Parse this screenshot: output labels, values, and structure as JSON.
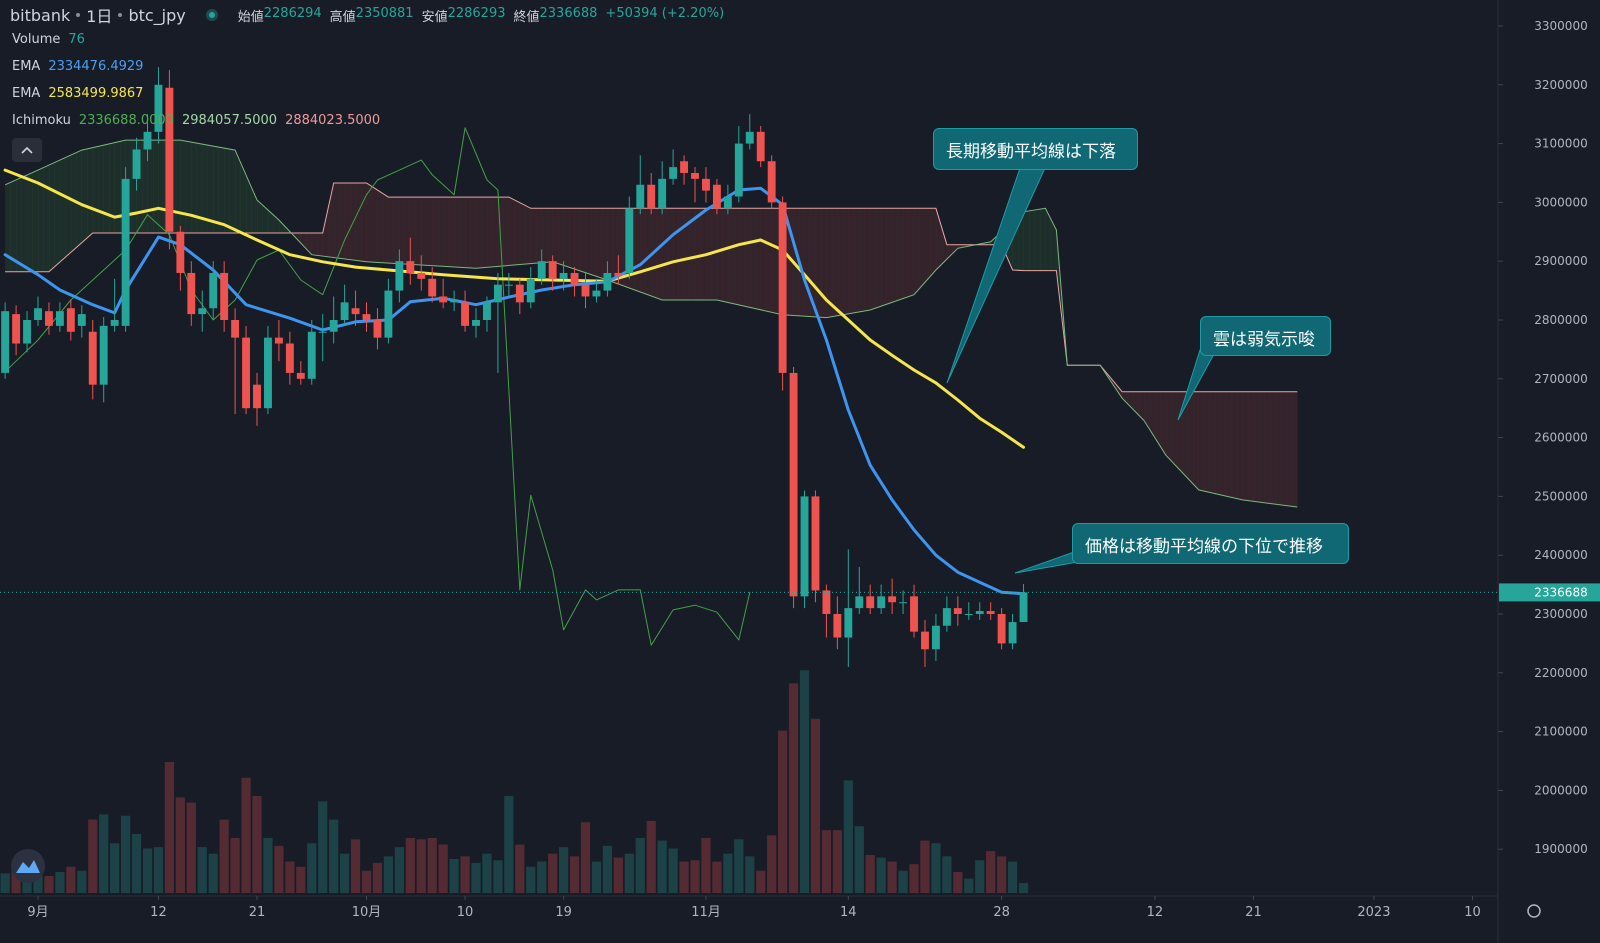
{
  "header": {
    "symbol_parts": [
      "bitbank",
      "1日",
      "btc_jpy"
    ],
    "ohlc": [
      {
        "label": "始値",
        "value": 2286294
      },
      {
        "label": "高値",
        "value": 2350881
      },
      {
        "label": "安値",
        "value": 2286293
      },
      {
        "label": "終値",
        "value": 2336688
      }
    ],
    "change": "+50394 (+2.20%)"
  },
  "legend": [
    {
      "name": "Volume",
      "values": [
        76
      ],
      "colors": [
        "#26a69a"
      ]
    },
    {
      "name": "EMA",
      "values": [
        "2334476.4929"
      ],
      "colors": [
        "#4a9ff5"
      ]
    },
    {
      "name": "EMA",
      "values": [
        "2583499.9867"
      ],
      "colors": [
        "#f5e64a"
      ]
    },
    {
      "name": "Ichimoku",
      "values": [
        "2336688.0000",
        "2984057.5000",
        "2884023.5000"
      ],
      "colors": [
        "#4caf50",
        "#a5d6a7",
        "#ef9a9a"
      ]
    }
  ],
  "annotations": [
    "長期移動平均線は下落",
    "雲は弱気示唆",
    "価格は移動平均線の下位で推移"
  ],
  "chart_data": {
    "type": "candlestick",
    "xlim": [
      -3.47,
      133.33
    ],
    "xticks": [
      {
        "value": 0,
        "label": "9月"
      },
      {
        "value": 11,
        "label": "12"
      },
      {
        "value": 20,
        "label": "21"
      },
      {
        "value": 30,
        "label": "10月"
      },
      {
        "value": 39,
        "label": "10"
      },
      {
        "value": 48,
        "label": "19"
      },
      {
        "value": 61,
        "label": "11月"
      },
      {
        "value": 74,
        "label": "14"
      },
      {
        "value": 88,
        "label": "28"
      },
      {
        "value": 102,
        "label": "12"
      },
      {
        "value": 111,
        "label": "21"
      },
      {
        "value": 122,
        "label": "2023"
      },
      {
        "value": 131,
        "label": "10"
      }
    ],
    "ylim": [
      1825500,
      3344200
    ],
    "yticks": [
      1900000,
      2000000,
      2100000,
      2200000,
      2300000,
      2400000,
      2500000,
      2600000,
      2700000,
      2800000,
      2900000,
      3000000,
      3100000,
      3200000,
      3300000
    ],
    "grid": false,
    "up_color": "#26a69a",
    "down_color": "#ef5350",
    "x": [
      -3,
      -2,
      -1,
      0,
      1,
      2,
      3,
      4,
      5,
      6,
      7,
      8,
      9,
      10,
      11,
      12,
      13,
      14,
      15,
      16,
      17,
      18,
      19,
      20,
      21,
      22,
      23,
      24,
      25,
      26,
      27,
      28,
      29,
      30,
      31,
      32,
      33,
      34,
      35,
      36,
      37,
      38,
      39,
      40,
      41,
      42,
      43,
      44,
      45,
      46,
      47,
      48,
      49,
      50,
      51,
      52,
      53,
      54,
      55,
      56,
      57,
      58,
      59,
      60,
      61,
      62,
      63,
      64,
      65,
      66,
      67,
      68,
      69,
      70,
      71,
      72,
      73,
      74,
      75,
      76,
      77,
      78,
      79,
      80,
      81,
      82,
      83,
      84,
      85,
      86,
      87,
      88,
      89,
      90
    ],
    "open": [
      2710000,
      2810000,
      2760000,
      2800000,
      2815000,
      2790000,
      2820000,
      2790000,
      2780000,
      2690000,
      2790000,
      2790000,
      3040000,
      3090000,
      3120000,
      3195000,
      2950000,
      2880000,
      2810000,
      2820000,
      2880000,
      2800000,
      2770000,
      2690000,
      2650000,
      2770000,
      2760000,
      2710000,
      2700000,
      2780000,
      2780000,
      2800000,
      2820000,
      2810000,
      2800000,
      2770000,
      2850000,
      2900000,
      2880000,
      2870000,
      2840000,
      2830000,
      2830000,
      2790000,
      2800000,
      2830000,
      2860000,
      2860000,
      2830000,
      2870000,
      2900000,
      2870000,
      2880000,
      2860000,
      2840000,
      2850000,
      2880000,
      2880000,
      2990000,
      3030000,
      2990000,
      3040000,
      3070000,
      3050000,
      3040000,
      3030000,
      2990000,
      3010000,
      3100000,
      3120000,
      3070000,
      3000000,
      2710000,
      2330000,
      2500000,
      2340000,
      2300000,
      2260000,
      2310000,
      2330000,
      2310000,
      2330000,
      2320000,
      2330000,
      2270000,
      2240000,
      2280000,
      2310000,
      2300000,
      2300000,
      2305000,
      2300000,
      2250000,
      2286294
    ],
    "high": [
      2830000,
      2825000,
      2815000,
      2840000,
      2830000,
      2830000,
      2835000,
      2825000,
      2800000,
      2805000,
      2870000,
      3060000,
      3110000,
      3150000,
      3230000,
      3225000,
      2960000,
      2900000,
      2850000,
      2900000,
      2900000,
      2820000,
      2790000,
      2710000,
      2790000,
      2800000,
      2780000,
      2730000,
      2800000,
      2810000,
      2840000,
      2860000,
      2850000,
      2830000,
      2820000,
      2870000,
      2920000,
      2940000,
      2910000,
      2890000,
      2870000,
      2850000,
      2850000,
      2820000,
      2840000,
      2880000,
      2880000,
      2870000,
      2890000,
      2920000,
      2910000,
      2900000,
      2890000,
      2880000,
      2870000,
      2900000,
      2910000,
      3010000,
      3080000,
      3050000,
      3070000,
      3090000,
      3080000,
      3060000,
      3060000,
      3040000,
      3030000,
      3130000,
      3150000,
      3130000,
      3080000,
      3010000,
      2720000,
      2510000,
      2510000,
      2350000,
      2330000,
      2410000,
      2380000,
      2350000,
      2350000,
      2360000,
      2340000,
      2350000,
      2290000,
      2300000,
      2330000,
      2330000,
      2320000,
      2320000,
      2320000,
      2310000,
      2300000,
      2350881
    ],
    "low": [
      2700000,
      2740000,
      2745000,
      2790000,
      2775000,
      2780000,
      2765000,
      2770000,
      2665000,
      2660000,
      2780000,
      2780000,
      3020000,
      3070000,
      3100000,
      2920000,
      2850000,
      2790000,
      2780000,
      2800000,
      2780000,
      2640000,
      2640000,
      2620000,
      2640000,
      2730000,
      2690000,
      2690000,
      2690000,
      2730000,
      2760000,
      2790000,
      2790000,
      2780000,
      2750000,
      2760000,
      2830000,
      2860000,
      2850000,
      2830000,
      2820000,
      2815000,
      2780000,
      2770000,
      2780000,
      2710000,
      2840000,
      2810000,
      2820000,
      2860000,
      2850000,
      2850000,
      2840000,
      2820000,
      2830000,
      2840000,
      2860000,
      2870000,
      2980000,
      2980000,
      2980000,
      3030000,
      3030000,
      3000000,
      3000000,
      2980000,
      2980000,
      3000000,
      3090000,
      3060000,
      2990000,
      2680000,
      2310000,
      2310000,
      2320000,
      2260000,
      2240000,
      2210000,
      2300000,
      2300000,
      2300000,
      2300000,
      2300000,
      2260000,
      2210000,
      2220000,
      2270000,
      2280000,
      2290000,
      2290000,
      2290000,
      2240000,
      2240000,
      2286293
    ],
    "close": [
      2815000,
      2760000,
      2800000,
      2820000,
      2790000,
      2815000,
      2780000,
      2810000,
      2690000,
      2790000,
      2800000,
      3040000,
      3090000,
      3120000,
      3200000,
      2950000,
      2880000,
      2810000,
      2820000,
      2880000,
      2800000,
      2770000,
      2650000,
      2650000,
      2770000,
      2760000,
      2710000,
      2700000,
      2780000,
      2780000,
      2800000,
      2830000,
      2810000,
      2800000,
      2770000,
      2850000,
      2900000,
      2880000,
      2870000,
      2840000,
      2830000,
      2835000,
      2790000,
      2800000,
      2830000,
      2860000,
      2860000,
      2830000,
      2870000,
      2900000,
      2870000,
      2880000,
      2860000,
      2840000,
      2850000,
      2880000,
      2875000,
      2990000,
      3030000,
      2990000,
      3040000,
      3060000,
      3050000,
      3040000,
      3020000,
      2990000,
      3010000,
      3100000,
      3120000,
      3070000,
      3000000,
      2710000,
      2330000,
      2500000,
      2340000,
      2300000,
      2260000,
      2310000,
      2330000,
      2310000,
      2330000,
      2320000,
      2320000,
      2270000,
      2240000,
      2280000,
      2310000,
      2300000,
      2300000,
      2305000,
      2300000,
      2250000,
      2286294,
      2336688
    ],
    "volume": [
      150,
      220,
      180,
      170,
      130,
      160,
      200,
      170,
      560,
      600,
      380,
      590,
      450,
      340,
      350,
      1000,
      730,
      690,
      350,
      300,
      560,
      420,
      880,
      740,
      420,
      360,
      240,
      200,
      380,
      700,
      560,
      300,
      410,
      170,
      230,
      280,
      350,
      420,
      410,
      420,
      370,
      260,
      280,
      230,
      300,
      250,
      740,
      370,
      200,
      240,
      300,
      350,
      280,
      540,
      240,
      360,
      270,
      300,
      420,
      550,
      400,
      340,
      240,
      250,
      420,
      240,
      300,
      410,
      280,
      170,
      440,
      1240,
      1600,
      1700,
      1330,
      480,
      480,
      860,
      510,
      290,
      270,
      240,
      170,
      220,
      400,
      380,
      280,
      160,
      110,
      250,
      320,
      280,
      240,
      76
    ],
    "volume_ylim": [
      0,
      3000
    ],
    "volume_up_color": "rgba(38,166,154,0.28)",
    "volume_down_color": "rgba(239,83,80,0.28)",
    "lines": [
      {
        "color": "#43a047",
        "width": 1,
        "x": [
          -3,
          0,
          3,
          6,
          8,
          10,
          12,
          14,
          16,
          18,
          20,
          22,
          24,
          26,
          28,
          30,
          31,
          33,
          35,
          36,
          38,
          39,
          41,
          42,
          44,
          45,
          47,
          48,
          50,
          51,
          53,
          55,
          56,
          58,
          60,
          62,
          64,
          65
        ],
        "values": [
          2712000,
          2766000,
          2834000,
          2885000,
          2919000,
          2979000,
          2945000,
          2851000,
          2800000,
          2834000,
          2902000,
          2919000,
          2868000,
          2843000,
          2936000,
          3013000,
          3038000,
          3055000,
          3072000,
          3047000,
          3013000,
          3127000,
          3038000,
          3021000,
          2341000,
          2502000,
          2375000,
          2273000,
          2341000,
          2324000,
          2341000,
          2341000,
          2247000,
          2307000,
          2315000,
          2303000,
          2256000,
          2336688
        ]
      },
      {
        "color": "#f5e64a",
        "width": 3,
        "x": [
          -3,
          0,
          4,
          7,
          9,
          11,
          14,
          17,
          20,
          23,
          26,
          29,
          32,
          37,
          42,
          47,
          52,
          55,
          58,
          61,
          64,
          66,
          68,
          70,
          72,
          74,
          76,
          78,
          80,
          82,
          84,
          86,
          88,
          90
        ],
        "values": [
          3055000,
          3033000,
          2996000,
          2975000,
          2982000,
          2990000,
          2978000,
          2962000,
          2936000,
          2911000,
          2899000,
          2890000,
          2885000,
          2877000,
          2870000,
          2868000,
          2866000,
          2882000,
          2899000,
          2911000,
          2928000,
          2936000,
          2919000,
          2877000,
          2834000,
          2800000,
          2766000,
          2740000,
          2715000,
          2693000,
          2664000,
          2633000,
          2609000,
          2583499.9867
        ]
      },
      {
        "color": "#3d95f0",
        "width": 3,
        "x": [
          -3,
          0,
          2,
          5,
          7,
          8,
          11,
          13,
          16,
          19,
          23,
          26,
          29,
          32,
          34,
          37,
          40,
          43,
          46,
          49,
          52,
          55,
          58,
          61,
          64,
          66,
          68,
          70,
          72,
          74,
          76,
          78,
          80,
          82,
          84,
          86,
          88,
          90
        ],
        "values": [
          2911000,
          2877000,
          2851000,
          2826000,
          2812000,
          2851000,
          2941000,
          2928000,
          2885000,
          2826000,
          2803000,
          2783000,
          2797000,
          2800000,
          2831000,
          2837000,
          2826000,
          2839000,
          2851000,
          2860000,
          2865000,
          2894000,
          2945000,
          2987000,
          3021000,
          3024000,
          2996000,
          2868000,
          2766000,
          2647000,
          2553000,
          2494000,
          2443000,
          2400000,
          2371000,
          2354000,
          2337000,
          2334476.4929
        ]
      }
    ],
    "cloud": {
      "a_color": "#7cb87f",
      "b_color": "#e8a6a6",
      "up_fill": "rgba(76,175,80,0.13)",
      "down_fill": "rgba(239,83,80,0.13)",
      "a_x": [
        -3,
        0,
        4,
        8,
        13,
        18,
        20,
        22,
        25,
        30,
        40,
        47,
        52,
        57,
        62,
        68,
        72,
        76,
        80,
        82,
        84,
        87,
        90,
        92,
        93,
        94,
        97,
        99,
        101,
        103,
        106,
        110,
        115
      ],
      "a": [
        3030000,
        3055000,
        3089000,
        3106000,
        3106000,
        3089000,
        3004000,
        2970000,
        2911000,
        2899000,
        2888000,
        2899000,
        2868000,
        2834000,
        2834000,
        2809000,
        2804000,
        2817000,
        2843000,
        2885000,
        2922000,
        2933000,
        2984057.5,
        2990000,
        2953000,
        2723000,
        2723000,
        2667000,
        2629000,
        2570000,
        2511000,
        2494000,
        2482000
      ],
      "b_x": [
        -3,
        1,
        5,
        26,
        27,
        30,
        32,
        43,
        45,
        82,
        83,
        88,
        89,
        90,
        93,
        94,
        97,
        99,
        115
      ],
      "b": [
        2882000,
        2882000,
        2948000,
        2948000,
        3033000,
        3033000,
        3009000,
        3009000,
        2990000,
        2990000,
        2928000,
        2928000,
        2885000,
        2884023.5,
        2884000,
        2723000,
        2723000,
        2678000,
        2678000
      ]
    }
  }
}
